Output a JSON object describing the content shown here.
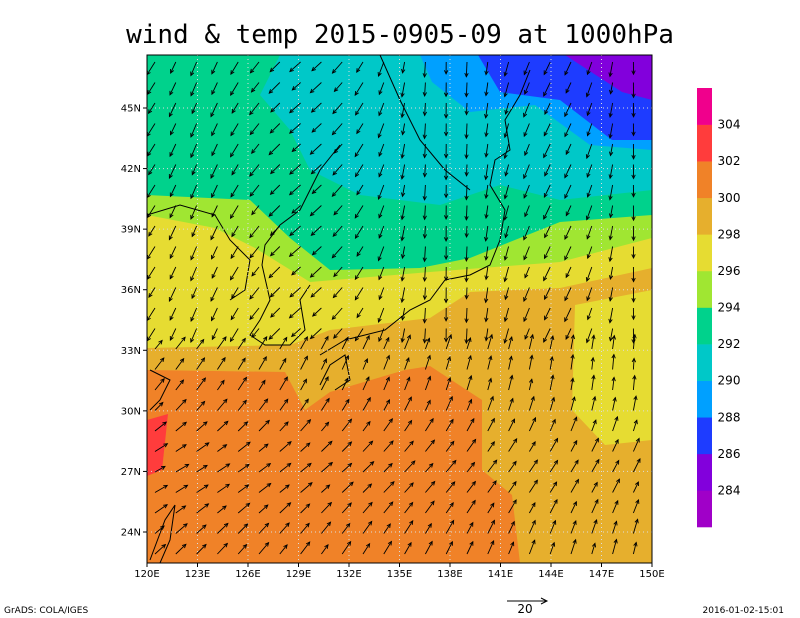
{
  "title": "wind & temp 2015-0905-09 at 1000hPa",
  "map": {
    "xticks": [
      "120E",
      "123E",
      "126E",
      "129E",
      "132E",
      "135E",
      "138E",
      "141E",
      "144E",
      "147E",
      "150E"
    ],
    "yticks": [
      "45N",
      "42N",
      "39N",
      "36N",
      "33N",
      "30N",
      "27N",
      "24N"
    ]
  },
  "colorbar": {
    "levels": [
      284,
      286,
      288,
      290,
      292,
      294,
      296,
      298,
      300,
      302,
      304
    ],
    "colors": [
      "#a000c8",
      "#8200dc",
      "#1e3cff",
      "#00a0ff",
      "#00c8c8",
      "#00d28c",
      "#a0e632",
      "#e6dc32",
      "#e6af2d",
      "#f08228",
      "#ff3c3c",
      "#f0008c"
    ]
  },
  "vector_ref": "20",
  "footer": {
    "left": "GrADS: COLA/IGES",
    "right": "2016-01-02-15:01"
  }
}
